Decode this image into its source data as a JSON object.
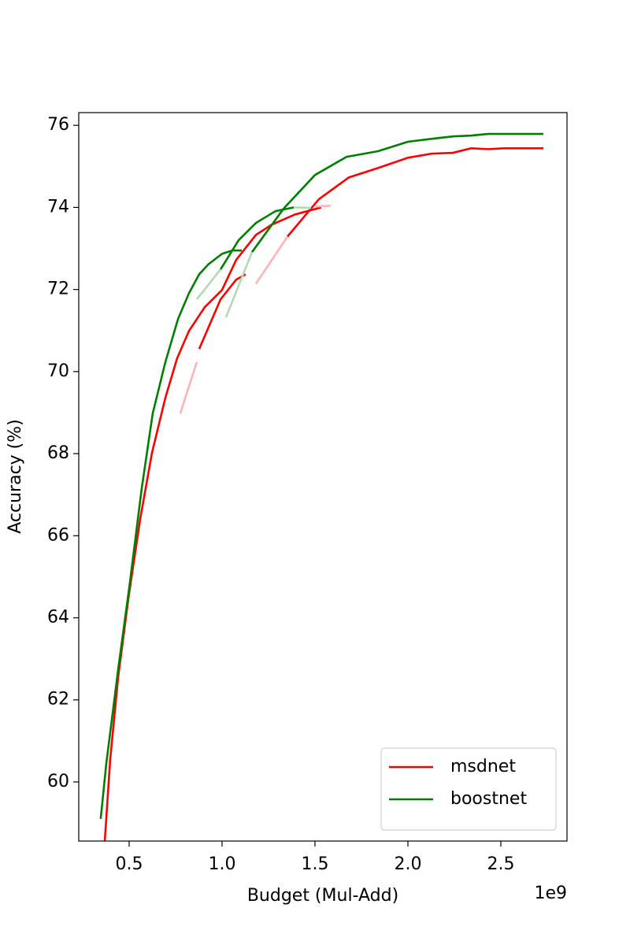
{
  "chart_data": {
    "type": "line",
    "x_label": "Budget (Mul-Add)",
    "y_label": "Accuracy (%)",
    "x_offset_label": "1e9",
    "xlim": [
      0.229,
      2.856
    ],
    "ylim": [
      58.56,
      76.31
    ],
    "xticks": [
      0.5,
      {
        "value": 1,
        "label": "1.0"
      },
      1.5,
      {
        "value": 2,
        "label": "2.0"
      },
      2.5
    ],
    "yticks": [
      60,
      62,
      64,
      66,
      68,
      70,
      72,
      74,
      76
    ],
    "legend": "lower right",
    "grid": false,
    "series": [
      {
        "name": "msdnet",
        "color": "#ff0000",
        "x": [
          0.369,
          0.398,
          0.441,
          0.496,
          0.559,
          0.623,
          0.695,
          0.758,
          0.822,
          0.907,
          1.0,
          1.076,
          1.182,
          1.267,
          1.394,
          1.534
        ],
        "values": [
          58.56,
          60.54,
          62.55,
          64.47,
          66.39,
          68.02,
          69.36,
          70.32,
          70.99,
          71.57,
          71.99,
          72.72,
          73.33,
          73.58,
          73.83,
          74.0
        ]
      },
      {
        "name": "boostnet",
        "color": "#008000",
        "x": [
          0.347,
          0.377,
          0.441,
          0.504,
          0.568,
          0.627,
          0.695,
          0.763,
          0.822,
          0.877,
          0.928,
          1.0,
          1.055,
          1.106
        ],
        "values": [
          59.1,
          60.44,
          62.74,
          64.85,
          67.16,
          68.98,
          70.23,
          71.28,
          71.91,
          72.37,
          72.62,
          72.87,
          72.95,
          72.95
        ]
      },
      {
        "color": "#ff0000",
        "x": [
          1.352,
          1.521,
          1.682,
          1.839,
          2.0,
          2.127,
          2.242,
          2.339,
          2.432,
          2.517,
          2.729
        ],
        "values": [
          73.29,
          74.2,
          74.73,
          74.96,
          75.21,
          75.31,
          75.33,
          75.44,
          75.42,
          75.44,
          75.44
        ]
      },
      {
        "color": "#ff0000",
        "x": [
          0.877,
          0.992,
          1.076,
          1.127
        ],
        "values": [
          70.55,
          71.76,
          72.24,
          72.37
        ]
      },
      {
        "color": "#008000",
        "x": [
          0.992,
          1.089,
          1.182,
          1.288,
          1.386
        ],
        "values": [
          72.49,
          73.2,
          73.62,
          73.91,
          74.0
        ]
      },
      {
        "color": "#008000",
        "x": [
          1.161,
          1.331,
          1.5,
          1.669,
          1.839,
          2.0,
          2.127,
          2.242,
          2.339,
          2.432,
          2.729
        ],
        "values": [
          72.91,
          73.97,
          74.79,
          75.23,
          75.37,
          75.6,
          75.67,
          75.73,
          75.75,
          75.79,
          75.79
        ]
      },
      {
        "color": "#ffb3b3",
        "x": [
          0.775,
          0.864
        ],
        "values": [
          68.98,
          70.23
        ]
      },
      {
        "color": "#ffb3b3",
        "x": [
          1.182,
          1.352
        ],
        "values": [
          72.14,
          73.29
        ]
      },
      {
        "color": "#ffb3b3",
        "x": [
          1.5,
          1.585
        ],
        "values": [
          74.02,
          74.04
        ]
      },
      {
        "color": "#b3d9b3",
        "x": [
          0.864,
          0.992
        ],
        "values": [
          71.76,
          72.49
        ]
      },
      {
        "color": "#b3d9b3",
        "x": [
          1.021,
          1.161
        ],
        "values": [
          71.32,
          72.91
        ]
      },
      {
        "color": "#b3d9b3",
        "x": [
          1.386,
          1.479
        ],
        "values": [
          74.0,
          73.99
        ]
      }
    ]
  }
}
